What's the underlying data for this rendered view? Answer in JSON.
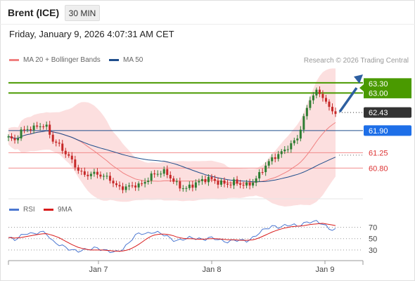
{
  "header": {
    "instrument": "Brent (ICE)",
    "timeframe": "30 MIN",
    "timestamp": "Friday, January 9, 2026 4:07:31 AM CET"
  },
  "legend": {
    "ma20_label": "MA 20 + Bollinger Bands",
    "ma50_label": "MA 50",
    "credit": "Research © 2026 Trading Central"
  },
  "rsi_legend": {
    "rsi_label": "RSI",
    "ma_label": "9MA"
  },
  "colors": {
    "candle_up": "#2e7d32",
    "candle_down": "#c62828",
    "ma20": "#f08080",
    "ma50": "#1f4e8c",
    "bands_fill": "#fbd9d9",
    "resistance": "#4a9a00",
    "support": "#f28b8b",
    "pivot": "#1f4e8c",
    "rsi": "#4b77d1",
    "rsi_ma": "#d81b1b",
    "arrow": "#2d5fa0"
  },
  "chart_data": {
    "type": "candlestick",
    "x_labels": [
      "Jan 7",
      "Jan 8",
      "Jan 9"
    ],
    "price_levels": [
      {
        "name": "resistance",
        "value": 63.3,
        "label": "63.30"
      },
      {
        "name": "resistance",
        "value": 63.0,
        "label": "63.00"
      },
      {
        "name": "last",
        "value": 62.43,
        "label": "62.43"
      },
      {
        "name": "pivot",
        "value": 61.9,
        "label": "61.90"
      },
      {
        "name": "support",
        "value": 61.25,
        "label": "61.25"
      },
      {
        "name": "support",
        "value": 60.8,
        "label": "60.80"
      }
    ],
    "ylim": [
      59.9,
      63.75
    ],
    "close_path": [
      61.7,
      61.6,
      61.88,
      61.95,
      61.98,
      62.05,
      62.03,
      61.62,
      61.48,
      61.25,
      61.05,
      60.75,
      60.6,
      60.62,
      60.65,
      60.55,
      60.52,
      60.28,
      60.22,
      60.25,
      60.3,
      60.3,
      60.45,
      60.62,
      60.66,
      60.7,
      60.45,
      60.3,
      60.18,
      60.28,
      60.38,
      60.46,
      60.5,
      60.4,
      60.36,
      60.32,
      60.4,
      60.32,
      60.3,
      60.4,
      60.65,
      60.9,
      61.1,
      61.2,
      61.35,
      61.5,
      61.7,
      62.3,
      62.85,
      63.05,
      62.9,
      62.55,
      62.43
    ],
    "rsi": {
      "levels": [
        70,
        50,
        30
      ],
      "values": [
        52,
        48,
        55,
        60,
        58,
        62,
        60,
        45,
        40,
        35,
        30,
        28,
        30,
        32,
        34,
        30,
        28,
        26,
        30,
        40,
        55,
        60,
        58,
        62,
        60,
        56,
        48,
        46,
        50,
        52,
        50,
        48,
        52,
        50,
        46,
        44,
        48,
        47,
        46,
        52,
        62,
        68,
        72,
        70,
        73,
        75,
        72,
        77,
        80,
        80,
        76,
        67,
        66
      ],
      "ma_values": [
        52,
        51,
        52,
        54,
        56,
        58,
        59,
        56,
        52,
        46,
        40,
        35,
        32,
        30,
        30,
        30,
        29,
        28,
        28,
        30,
        35,
        42,
        50,
        56,
        58,
        58,
        56,
        52,
        50,
        50,
        49,
        49,
        50,
        50,
        49,
        48,
        48,
        47,
        47,
        48,
        52,
        57,
        62,
        66,
        69,
        71,
        72,
        73,
        75,
        76,
        77,
        75,
        73
      ],
      "ylim": [
        15,
        88
      ]
    }
  }
}
